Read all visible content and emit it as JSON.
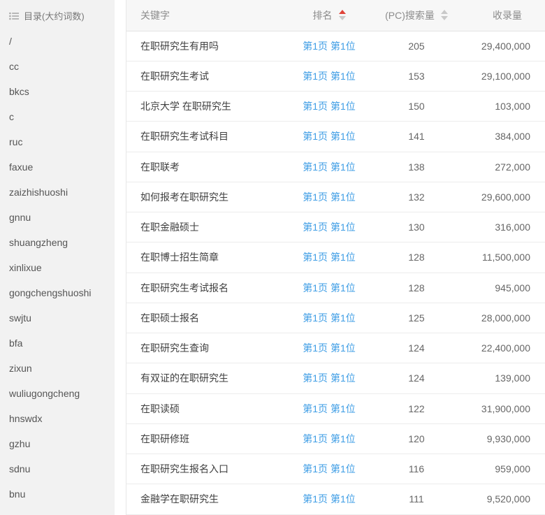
{
  "colors": {
    "link_blue": "#3e9de5",
    "sort_active_red": "#e0443a",
    "sidebar_bg": "#f2f2f2",
    "header_bg": "#f7f7f7"
  },
  "sidebar": {
    "title": "目录(大约词数)",
    "icon": "list-icon",
    "items": [
      "/",
      "cc",
      "bkcs",
      "c",
      "ruc",
      "faxue",
      "zaizhishuoshi",
      "gnnu",
      "shuangzheng",
      "xinlixue",
      "gongchengshuoshi",
      "swjtu",
      "bfa",
      "zixun",
      "wuliugongcheng",
      "hnswdx",
      "gzhu",
      "sdnu",
      "bnu"
    ]
  },
  "table": {
    "columns": [
      {
        "label": "关键字",
        "sort": "none"
      },
      {
        "label": "排名",
        "sort": "asc"
      },
      {
        "label": "(PC)搜索量",
        "sort": "inactive"
      },
      {
        "label": "收录量",
        "sort": "none"
      }
    ],
    "rows": [
      {
        "keyword": "在职研究生有用吗",
        "rank": "第1页 第1位",
        "search_volume": "205",
        "index_volume": "29,400,000"
      },
      {
        "keyword": "在职研究生考试",
        "rank": "第1页 第1位",
        "search_volume": "153",
        "index_volume": "29,100,000"
      },
      {
        "keyword": "北京大学 在职研究生",
        "rank": "第1页 第1位",
        "search_volume": "150",
        "index_volume": "103,000"
      },
      {
        "keyword": "在职研究生考试科目",
        "rank": "第1页 第1位",
        "search_volume": "141",
        "index_volume": "384,000"
      },
      {
        "keyword": "在职联考",
        "rank": "第1页 第1位",
        "search_volume": "138",
        "index_volume": "272,000"
      },
      {
        "keyword": "如何报考在职研究生",
        "rank": "第1页 第1位",
        "search_volume": "132",
        "index_volume": "29,600,000"
      },
      {
        "keyword": "在职金融硕士",
        "rank": "第1页 第1位",
        "search_volume": "130",
        "index_volume": "316,000"
      },
      {
        "keyword": "在职博士招生简章",
        "rank": "第1页 第1位",
        "search_volume": "128",
        "index_volume": "11,500,000"
      },
      {
        "keyword": "在职研究生考试报名",
        "rank": "第1页 第1位",
        "search_volume": "128",
        "index_volume": "945,000"
      },
      {
        "keyword": "在职硕士报名",
        "rank": "第1页 第1位",
        "search_volume": "125",
        "index_volume": "28,000,000"
      },
      {
        "keyword": "在职研究生查询",
        "rank": "第1页 第1位",
        "search_volume": "124",
        "index_volume": "22,400,000"
      },
      {
        "keyword": "有双证的在职研究生",
        "rank": "第1页 第1位",
        "search_volume": "124",
        "index_volume": "139,000"
      },
      {
        "keyword": "在职读硕",
        "rank": "第1页 第1位",
        "search_volume": "122",
        "index_volume": "31,900,000"
      },
      {
        "keyword": "在职研修班",
        "rank": "第1页 第1位",
        "search_volume": "120",
        "index_volume": "9,930,000"
      },
      {
        "keyword": "在职研究生报名入口",
        "rank": "第1页 第1位",
        "search_volume": "116",
        "index_volume": "959,000"
      },
      {
        "keyword": "金融学在职研究生",
        "rank": "第1页 第1位",
        "search_volume": "111",
        "index_volume": "9,520,000"
      }
    ]
  }
}
